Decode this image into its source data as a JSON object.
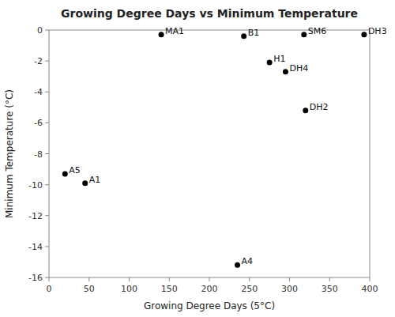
{
  "chart_data": {
    "type": "scatter",
    "title": "Growing Degree Days vs Minimum Temperature",
    "x_label": "Growing Degree Days (5°C)",
    "y_label": "Minimum Temperature (°C)",
    "labels": [
      "A4",
      "A1",
      "A5",
      "DH2",
      "DH4",
      "H1",
      "MA1",
      "B1",
      "SM6",
      "DH3"
    ],
    "x": [
      235,
      45,
      20,
      320,
      295,
      275,
      140,
      243,
      318,
      393
    ],
    "values": [
      -15.2,
      -9.9,
      -9.3,
      -5.2,
      -2.7,
      -2.1,
      -0.3,
      -0.4,
      -0.3,
      -0.3
    ],
    "xlim": [
      0,
      400
    ],
    "ylim": [
      -16,
      0
    ],
    "xticks": [
      0,
      50,
      100,
      150,
      200,
      250,
      300,
      350,
      400
    ],
    "yticks": [
      -16,
      -14,
      -12,
      -10,
      -8,
      -6,
      -4,
      -2,
      0
    ],
    "color": "black",
    "marker": "circle",
    "grid": false
  }
}
